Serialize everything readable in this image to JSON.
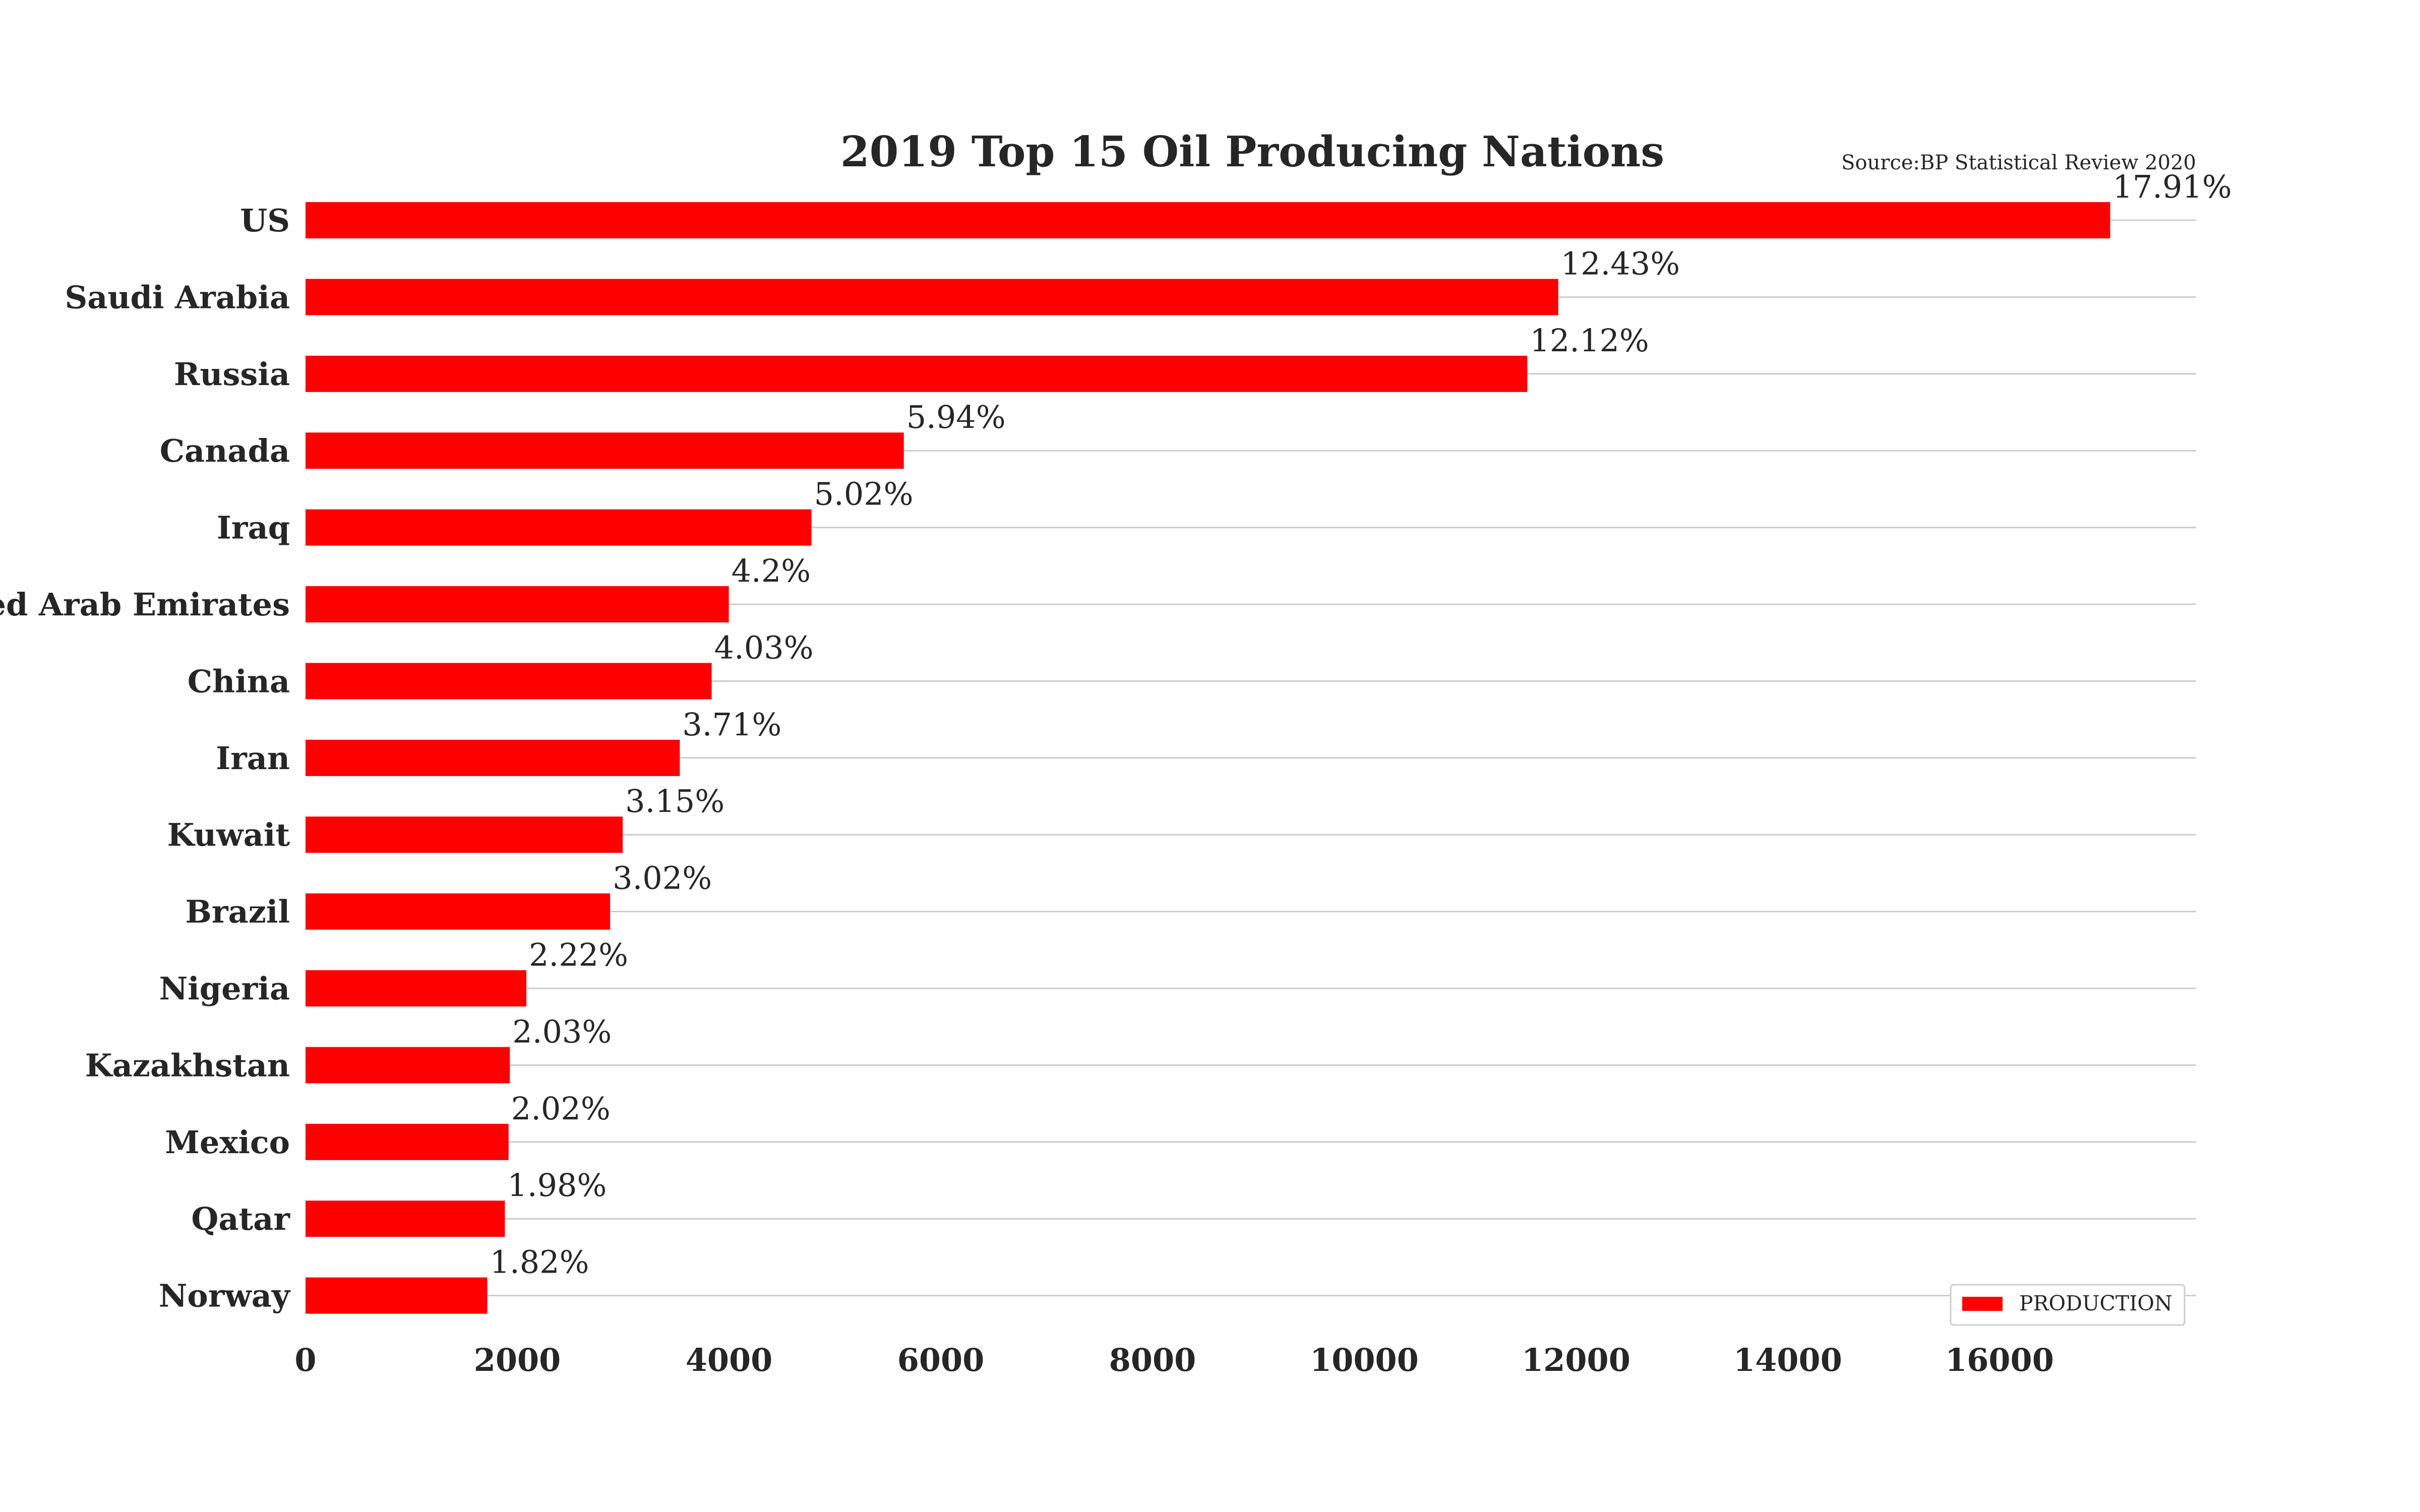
{
  "chart_data": {
    "type": "bar",
    "orientation": "horizontal",
    "title": "2019 Top 15 Oil Producing Nations",
    "subtitle": "Source:BP Statistical Review 2020",
    "categories": [
      "US",
      "Saudi Arabia",
      "Russia",
      "Canada",
      "Iraq",
      "United Arab Emirates",
      "China",
      "Iran",
      "Kuwait",
      "Brazil",
      "Nigeria",
      "Kazakhstan",
      "Mexico",
      "Qatar",
      "Norway"
    ],
    "series": [
      {
        "name": "PRODUCTION",
        "color": "#ff0000",
        "values": [
          17045,
          11832,
          11540,
          5651,
          4779,
          3998,
          3836,
          3535,
          2996,
          2877,
          2086,
          1930,
          1918,
          1883,
          1717
        ],
        "data_labels": [
          "17.91%",
          "12.43%",
          "12.12%",
          "5.94%",
          "5.02%",
          "4.2%",
          "4.03%",
          "3.71%",
          "3.15%",
          "3.02%",
          "2.22%",
          "2.03%",
          "2.02%",
          "1.98%",
          "1.82%"
        ]
      }
    ],
    "x_ticks": [
      "0",
      "2000",
      "4000",
      "6000",
      "8000",
      "10000",
      "12000",
      "14000",
      "16000"
    ],
    "xlim": [
      0,
      17900
    ],
    "xlabel": "",
    "ylabel": "",
    "grid": "horizontal",
    "legend": {
      "position": "bottom-right",
      "entries": [
        "PRODUCTION"
      ]
    }
  }
}
